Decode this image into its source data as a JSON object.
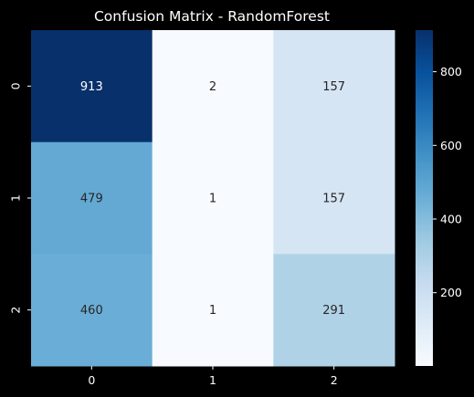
{
  "chart_data": {
    "type": "heatmap",
    "title": "Confusion Matrix - RandomForest",
    "xlabel": "",
    "ylabel": "",
    "x_categories": [
      "0",
      "1",
      "2"
    ],
    "y_categories": [
      "0",
      "1",
      "2"
    ],
    "values": [
      [
        913,
        2,
        157
      ],
      [
        479,
        1,
        157
      ],
      [
        460,
        1,
        291
      ]
    ],
    "value_format": "d",
    "colormap": "Blues",
    "color_range": [
      1,
      913
    ],
    "colorbar_ticks": [
      200,
      400,
      600,
      800
    ],
    "colorbar_tick_labels": [
      "200",
      "400",
      "600",
      "800"
    ],
    "grid": false,
    "colors": {
      "background": "#000000",
      "axis_text": "#ffffff",
      "light_text": "#ffffff",
      "dark_text": "#262626"
    }
  }
}
